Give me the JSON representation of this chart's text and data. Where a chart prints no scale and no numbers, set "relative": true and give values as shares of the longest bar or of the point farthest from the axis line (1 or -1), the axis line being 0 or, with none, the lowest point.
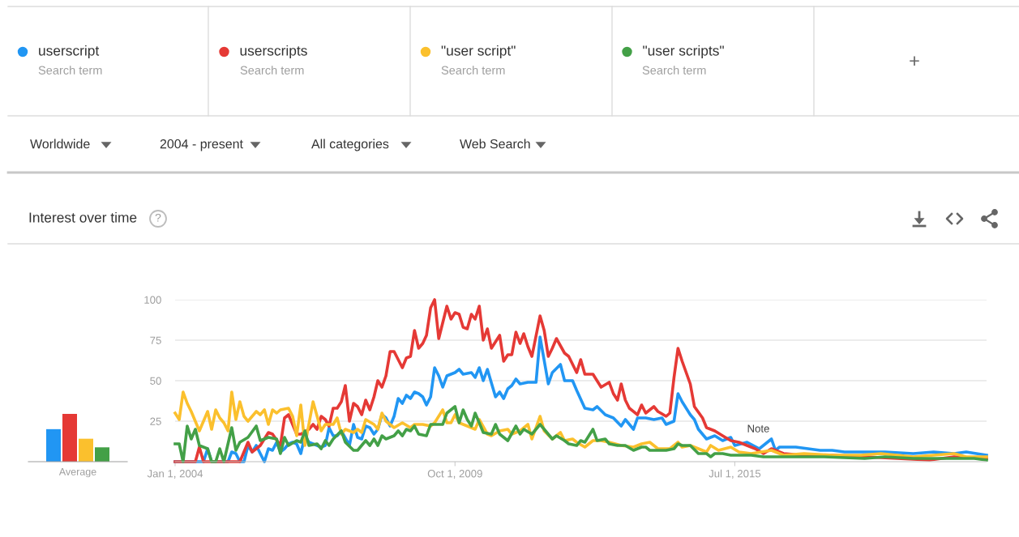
{
  "chart_data": [
    {
      "type": "line",
      "title": "Interest over time",
      "xlim": [
        "2004-01-01",
        "2020-09-01"
      ],
      "ylim": [
        0,
        100
      ],
      "xticks": [
        {
          "value": "2004-01-01",
          "label": "Jan 1, 2004"
        },
        {
          "value": "2009-10-01",
          "label": "Oct 1, 2009"
        },
        {
          "value": "2015-07-01",
          "label": "Jul 1, 2015"
        }
      ],
      "yticks": [
        25,
        50,
        75,
        100
      ],
      "grid": "y",
      "legend": "top",
      "marker": "none",
      "line_style": "solid",
      "series": [
        {
          "name": "userscript",
          "color": "#2196f3",
          "x": [
            "2004-01",
            "2004-08",
            "2004-09",
            "2004-10",
            "2005-02",
            "2005-03",
            "2005-04",
            "2005-05",
            "2005-06",
            "2005-07",
            "2005-08",
            "2005-09",
            "2005-10",
            "2005-11",
            "2005-12",
            "2006-01",
            "2006-02",
            "2006-03",
            "2006-04",
            "2006-05",
            "2006-06",
            "2006-07",
            "2006-08",
            "2006-09",
            "2006-10",
            "2006-11",
            "2007-01",
            "2007-02",
            "2007-03",
            "2007-04",
            "2007-05",
            "2007-06",
            "2007-08",
            "2007-09",
            "2007-10",
            "2007-11",
            "2007-12",
            "2008-01",
            "2008-02",
            "2008-03",
            "2008-04",
            "2008-05",
            "2008-06",
            "2008-07",
            "2008-08",
            "2008-09",
            "2008-10",
            "2008-11",
            "2008-12",
            "2009-01",
            "2009-02",
            "2009-03",
            "2009-04",
            "2009-05",
            "2009-06",
            "2009-07",
            "2009-08",
            "2009-10",
            "2009-11",
            "2009-12",
            "2010-02",
            "2010-03",
            "2010-04",
            "2010-05",
            "2010-06",
            "2010-08",
            "2010-09",
            "2010-10",
            "2010-11",
            "2010-12",
            "2011-01",
            "2011-02",
            "2011-04",
            "2011-06",
            "2011-07",
            "2011-09",
            "2011-10",
            "2011-12",
            "2012-01",
            "2012-03",
            "2012-04",
            "2012-06",
            "2012-08",
            "2012-09",
            "2012-11",
            "2013-01",
            "2013-03",
            "2013-04",
            "2013-06",
            "2013-07",
            "2013-09",
            "2013-11",
            "2014-01",
            "2014-02",
            "2014-04",
            "2014-05",
            "2014-06",
            "2014-08",
            "2014-09",
            "2014-10",
            "2014-12",
            "2015-02",
            "2015-04",
            "2015-06",
            "2015-07",
            "2015-10",
            "2016-01",
            "2016-04",
            "2016-05",
            "2016-06",
            "2016-10",
            "2017-01",
            "2017-04",
            "2017-07",
            "2017-10",
            "2018-08",
            "2019-03",
            "2019-08",
            "2020-01",
            "2020-04",
            "2020-09"
          ],
          "values": [
            0,
            0,
            8,
            0,
            0,
            6,
            5,
            0,
            0,
            10,
            6,
            10,
            5,
            0,
            8,
            7,
            12,
            6,
            8,
            11,
            12,
            11,
            5,
            16,
            12,
            11,
            9,
            10,
            21,
            16,
            16,
            19,
            10,
            23,
            15,
            14,
            22,
            21,
            17,
            20,
            29,
            27,
            22,
            28,
            39,
            36,
            41,
            39,
            43,
            42,
            40,
            35,
            40,
            58,
            53,
            46,
            53,
            55,
            57,
            54,
            55,
            52,
            58,
            50,
            57,
            40,
            43,
            39,
            45,
            47,
            51,
            48,
            49,
            49,
            77,
            48,
            55,
            60,
            50,
            50,
            44,
            33,
            32,
            34,
            29,
            27,
            22,
            26,
            20,
            27,
            27,
            26,
            27,
            23,
            25,
            42,
            37,
            29,
            26,
            20,
            14,
            16,
            13,
            15,
            10,
            12,
            8,
            14,
            7,
            9,
            9,
            8,
            7,
            7,
            6,
            6,
            5,
            6,
            5,
            6,
            4
          ]
        },
        {
          "name": "userscripts",
          "color": "#e53935",
          "x": [
            "2004-01",
            "2004-06",
            "2004-07",
            "2004-08",
            "2005-05",
            "2005-07",
            "2005-08",
            "2005-10",
            "2005-12",
            "2006-01",
            "2006-03",
            "2006-04",
            "2006-05",
            "2006-07",
            "2006-08",
            "2006-10",
            "2006-11",
            "2006-12",
            "2007-01",
            "2007-02",
            "2007-03",
            "2007-04",
            "2007-05",
            "2007-06",
            "2007-07",
            "2007-08",
            "2007-09",
            "2007-10",
            "2007-11",
            "2007-12",
            "2008-01",
            "2008-02",
            "2008-03",
            "2008-04",
            "2008-05",
            "2008-06",
            "2008-07",
            "2008-08",
            "2008-09",
            "2008-10",
            "2008-11",
            "2008-12",
            "2009-01",
            "2009-02",
            "2009-03",
            "2009-04",
            "2009-05",
            "2009-06",
            "2009-08",
            "2009-09",
            "2009-10",
            "2009-11",
            "2009-12",
            "2010-01",
            "2010-02",
            "2010-03",
            "2010-04",
            "2010-05",
            "2010-06",
            "2010-07",
            "2010-09",
            "2010-10",
            "2010-11",
            "2010-12",
            "2011-01",
            "2011-02",
            "2011-03",
            "2011-04",
            "2011-05",
            "2011-07",
            "2011-08",
            "2011-09",
            "2011-10",
            "2011-11",
            "2012-01",
            "2012-02",
            "2012-04",
            "2012-05",
            "2012-06",
            "2012-08",
            "2012-10",
            "2012-12",
            "2013-01",
            "2013-02",
            "2013-03",
            "2013-04",
            "2013-05",
            "2013-07",
            "2013-08",
            "2013-09",
            "2013-11",
            "2013-12",
            "2014-02",
            "2014-03",
            "2014-04",
            "2014-05",
            "2014-06",
            "2014-08",
            "2014-09",
            "2014-11",
            "2014-12",
            "2015-02",
            "2015-04",
            "2015-06",
            "2015-08",
            "2015-10",
            "2015-12",
            "2016-02",
            "2016-04",
            "2016-07",
            "2016-12",
            "2017-07",
            "2018-03",
            "2018-11",
            "2019-07",
            "2020-01",
            "2020-09"
          ],
          "values": [
            0,
            0,
            9,
            0,
            0,
            12,
            6,
            10,
            18,
            17,
            10,
            27,
            29,
            17,
            17,
            20,
            23,
            20,
            28,
            26,
            22,
            33,
            33,
            37,
            47,
            25,
            36,
            34,
            29,
            38,
            32,
            40,
            50,
            46,
            53,
            68,
            68,
            63,
            58,
            64,
            65,
            81,
            70,
            73,
            78,
            95,
            100,
            76,
            96,
            88,
            92,
            91,
            83,
            82,
            91,
            88,
            96,
            75,
            82,
            70,
            78,
            62,
            66,
            66,
            80,
            73,
            79,
            71,
            65,
            90,
            81,
            65,
            70,
            76,
            67,
            65,
            55,
            63,
            54,
            54,
            46,
            49,
            42,
            38,
            48,
            38,
            33,
            29,
            35,
            30,
            34,
            31,
            28,
            30,
            52,
            70,
            62,
            48,
            34,
            27,
            21,
            19,
            16,
            13,
            12,
            10,
            8,
            5,
            8,
            5,
            4,
            4,
            3,
            2,
            1,
            3,
            2
          ]
        },
        {
          "name": "\"user script\"",
          "color": "#fbc02d",
          "x": [
            "2004-01",
            "2004-02",
            "2004-03",
            "2004-04",
            "2004-05",
            "2004-07",
            "2004-09",
            "2004-10",
            "2004-11",
            "2004-12",
            "2005-01",
            "2005-02",
            "2005-03",
            "2005-04",
            "2005-05",
            "2005-06",
            "2005-07",
            "2005-09",
            "2005-10",
            "2005-11",
            "2005-12",
            "2006-01",
            "2006-02",
            "2006-03",
            "2006-05",
            "2006-06",
            "2006-07",
            "2006-08",
            "2006-09",
            "2006-11",
            "2007-01",
            "2007-02",
            "2007-04",
            "2007-05",
            "2007-06",
            "2007-07",
            "2007-09",
            "2007-10",
            "2007-11",
            "2007-12",
            "2008-02",
            "2008-03",
            "2008-04",
            "2008-05",
            "2008-07",
            "2008-09",
            "2008-11",
            "2008-12",
            "2009-02",
            "2009-04",
            "2009-05",
            "2009-07",
            "2009-08",
            "2009-09",
            "2009-10",
            "2009-11",
            "2010-01",
            "2010-03",
            "2010-04",
            "2010-06",
            "2010-07",
            "2010-09",
            "2010-11",
            "2010-12",
            "2011-02",
            "2011-04",
            "2011-05",
            "2011-07",
            "2011-08",
            "2011-10",
            "2011-12",
            "2012-01",
            "2012-03",
            "2012-04",
            "2012-06",
            "2012-08",
            "2012-10",
            "2012-12",
            "2013-03",
            "2013-06",
            "2013-08",
            "2013-10",
            "2013-12",
            "2014-03",
            "2014-05",
            "2014-06",
            "2014-08",
            "2014-10",
            "2014-12",
            "2015-01",
            "2015-03",
            "2015-06",
            "2015-08",
            "2015-11",
            "2016-04",
            "2016-07",
            "2016-12",
            "2017-07",
            "2018-02",
            "2018-07",
            "2019-03",
            "2020-01",
            "2020-04",
            "2020-09"
          ],
          "values": [
            30,
            26,
            43,
            36,
            31,
            19,
            31,
            20,
            32,
            27,
            24,
            19,
            43,
            26,
            37,
            28,
            25,
            31,
            29,
            32,
            23,
            32,
            30,
            32,
            33,
            28,
            16,
            35,
            10,
            37,
            19,
            23,
            23,
            27,
            17,
            20,
            18,
            20,
            18,
            26,
            23,
            20,
            30,
            25,
            21,
            24,
            21,
            23,
            23,
            22,
            24,
            32,
            24,
            24,
            29,
            24,
            22,
            20,
            26,
            17,
            16,
            19,
            20,
            17,
            19,
            23,
            14,
            28,
            19,
            14,
            18,
            13,
            14,
            12,
            9,
            13,
            13,
            12,
            10,
            9,
            11,
            12,
            8,
            8,
            12,
            9,
            10,
            8,
            6,
            10,
            7,
            9,
            6,
            5,
            7,
            4,
            5,
            4,
            4,
            5,
            3,
            5,
            3,
            3
          ]
        },
        {
          "name": "\"user scripts\"",
          "color": "#43a047",
          "x": [
            "2004-01",
            "2004-02",
            "2004-03",
            "2004-04",
            "2004-05",
            "2004-06",
            "2004-07",
            "2004-09",
            "2004-10",
            "2004-11",
            "2004-12",
            "2005-01",
            "2005-03",
            "2005-04",
            "2005-05",
            "2005-07",
            "2005-09",
            "2005-10",
            "2005-12",
            "2006-02",
            "2006-03",
            "2006-04",
            "2006-05",
            "2006-07",
            "2006-08",
            "2006-09",
            "2006-10",
            "2006-12",
            "2007-01",
            "2007-02",
            "2007-03",
            "2007-04",
            "2007-06",
            "2007-07",
            "2007-09",
            "2007-10",
            "2007-12",
            "2008-01",
            "2008-02",
            "2008-03",
            "2008-04",
            "2008-05",
            "2008-07",
            "2008-08",
            "2008-09",
            "2008-10",
            "2008-11",
            "2008-12",
            "2009-01",
            "2009-03",
            "2009-04",
            "2009-06",
            "2009-07",
            "2009-08",
            "2009-10",
            "2009-11",
            "2009-12",
            "2010-01",
            "2010-02",
            "2010-03",
            "2010-04",
            "2010-05",
            "2010-07",
            "2010-08",
            "2010-09",
            "2010-11",
            "2011-01",
            "2011-02",
            "2011-03",
            "2011-05",
            "2011-07",
            "2011-08",
            "2011-10",
            "2011-11",
            "2012-01",
            "2012-02",
            "2012-04",
            "2012-05",
            "2012-06",
            "2012-08",
            "2012-09",
            "2012-11",
            "2012-12",
            "2013-02",
            "2013-04",
            "2013-06",
            "2013-08",
            "2013-09",
            "2013-10",
            "2013-12",
            "2014-02",
            "2014-04",
            "2014-05",
            "2014-06",
            "2014-08",
            "2014-10",
            "2014-12",
            "2015-01",
            "2015-02",
            "2015-04",
            "2015-06",
            "2015-11",
            "2016-02",
            "2016-04",
            "2017-05",
            "2018-03",
            "2018-08",
            "2019-03",
            "2019-11",
            "2020-06",
            "2020-09"
          ],
          "values": [
            11,
            11,
            0,
            22,
            14,
            20,
            10,
            8,
            0,
            0,
            8,
            0,
            21,
            7,
            12,
            15,
            22,
            13,
            15,
            14,
            5,
            15,
            10,
            13,
            12,
            19,
            10,
            11,
            8,
            13,
            10,
            14,
            19,
            12,
            7,
            7,
            13,
            10,
            14,
            10,
            16,
            14,
            16,
            19,
            16,
            20,
            19,
            22,
            17,
            16,
            23,
            23,
            23,
            30,
            34,
            24,
            32,
            26,
            22,
            30,
            24,
            18,
            17,
            23,
            17,
            13,
            22,
            17,
            20,
            17,
            23,
            20,
            14,
            16,
            13,
            11,
            10,
            13,
            12,
            20,
            13,
            14,
            11,
            10,
            10,
            7,
            9,
            9,
            7,
            7,
            7,
            8,
            11,
            10,
            10,
            5,
            5,
            3,
            5,
            5,
            4,
            4,
            3,
            3,
            3,
            2,
            3,
            2,
            2,
            2,
            1
          ]
        }
      ],
      "annotations": [
        "Search term",
        "Search term",
        "Search term",
        "Search term",
        "+",
        "Worldwide",
        "2004 - present",
        "All categories",
        "Web Search",
        {
          "text": "Note",
          "x": "2015-10",
          "y": 6
        },
        "?"
      ]
    },
    {
      "type": "bar",
      "relative": true,
      "xlabel": "Average",
      "categories": [
        null,
        null,
        null,
        null
      ],
      "values": [
        0.68,
        1,
        0.48,
        0.3
      ],
      "colors": [
        "#2196f3",
        "#e53935",
        "#fbc02d",
        "#43a047"
      ]
    }
  ]
}
